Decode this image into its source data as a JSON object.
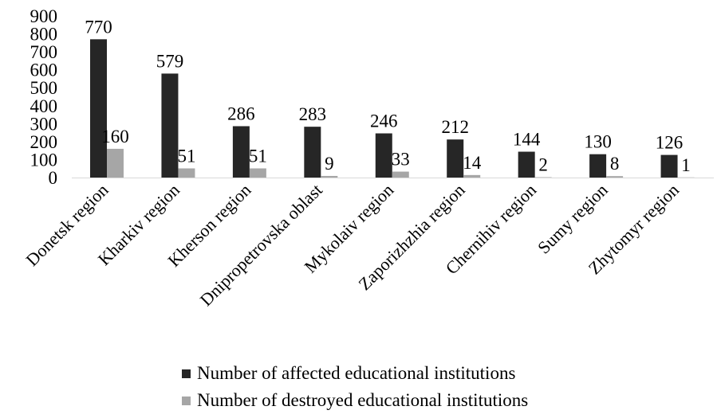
{
  "chart_data": {
    "type": "bar",
    "categories": [
      "Donetsk region",
      "Kharkiv region",
      "Kherson region",
      "Dnipropetrovska oblast",
      "Mykolaiv region",
      "Zaporizhzhia region",
      "Chernihiv region",
      "Sumy region",
      "Zhytomyr region"
    ],
    "series": [
      {
        "name": "Number of affected educational institutions",
        "values": [
          770,
          579,
          286,
          283,
          246,
          212,
          144,
          130,
          126
        ],
        "color": "#262626"
      },
      {
        "name": "Number of destroyed educational institutions",
        "values": [
          160,
          51,
          51,
          9,
          33,
          14,
          2,
          8,
          1
        ],
        "color": "#a6a6a6"
      }
    ],
    "title": "",
    "xlabel": "",
    "ylabel": "",
    "ylim": [
      0,
      900
    ],
    "yticks": [
      0,
      100,
      200,
      300,
      400,
      500,
      600,
      700,
      800,
      900
    ],
    "grid": false,
    "data_labels": true,
    "legend_position": "bottom"
  }
}
